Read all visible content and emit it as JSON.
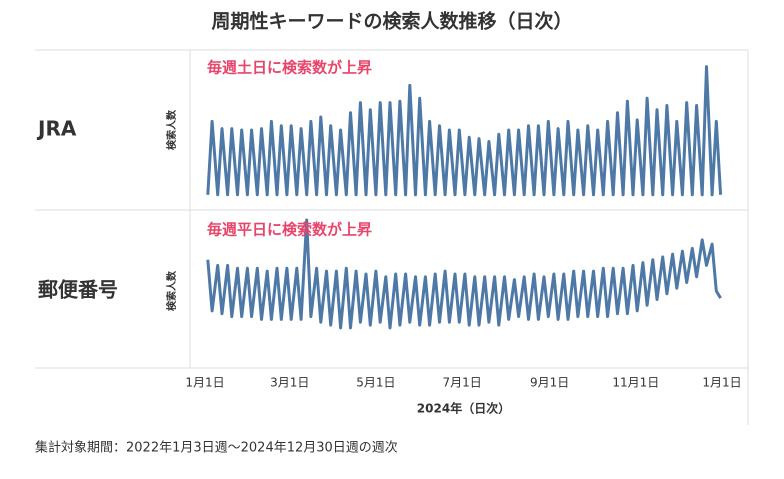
{
  "title": "周期性キーワードの検索人数推移（日次）",
  "chart_data": [
    {
      "type": "line",
      "row_label": "JRA",
      "annotation": "毎週土日に検索数が上昇",
      "y_label": "検索人数",
      "color": "#4e79a7",
      "xlim": [
        0,
        366
      ],
      "ylim": [
        0,
        100
      ],
      "x": [
        2,
        5,
        9,
        12,
        16,
        19,
        23,
        26,
        30,
        33,
        37,
        40,
        44,
        47,
        51,
        54,
        58,
        61,
        65,
        68,
        72,
        75,
        79,
        82,
        86,
        89,
        93,
        96,
        100,
        103,
        107,
        110,
        114,
        117,
        121,
        124,
        128,
        131,
        135,
        138,
        142,
        145,
        149,
        152,
        156,
        159,
        163,
        166,
        170,
        173,
        177,
        180,
        184,
        187,
        191,
        194,
        198,
        201,
        205,
        208,
        212,
        215,
        219,
        222,
        226,
        229,
        233,
        236,
        240,
        243,
        247,
        250,
        254,
        257,
        261,
        264,
        268,
        271,
        275,
        278,
        282,
        285,
        289,
        292,
        296,
        299,
        303,
        306,
        310,
        313,
        317,
        320,
        324,
        327,
        331,
        334,
        338,
        341,
        345,
        348,
        352,
        355,
        359,
        362,
        365
      ],
      "values": [
        5,
        56,
        5,
        51,
        5,
        51,
        5,
        50,
        5,
        50,
        5,
        51,
        5,
        56,
        5,
        53,
        5,
        53,
        5,
        51,
        5,
        56,
        5,
        59,
        5,
        53,
        5,
        50,
        5,
        62,
        5,
        69,
        5,
        64,
        5,
        69,
        5,
        69,
        5,
        70,
        5,
        81,
        5,
        72,
        5,
        56,
        5,
        53,
        5,
        50,
        5,
        50,
        5,
        45,
        5,
        44,
        5,
        42,
        5,
        47,
        5,
        50,
        5,
        50,
        5,
        53,
        5,
        53,
        5,
        56,
        5,
        51,
        5,
        56,
        5,
        50,
        5,
        53,
        5,
        50,
        5,
        56,
        5,
        62,
        5,
        70,
        5,
        57,
        5,
        72,
        5,
        64,
        5,
        67,
        5,
        56,
        5,
        69,
        5,
        67,
        5,
        94,
        5,
        56,
        5
      ]
    },
    {
      "type": "line",
      "row_label": "郵便番号",
      "annotation": "毎週平日に検索数が上昇",
      "y_label": "検索人数",
      "color": "#4e79a7",
      "xlim": [
        0,
        366
      ],
      "ylim": [
        0,
        100
      ],
      "x_label": "2024年（日次）",
      "xticks": [
        {
          "value": 0,
          "label": "1月1日"
        },
        {
          "value": 60,
          "label": "3月1日"
        },
        {
          "value": 121,
          "label": "5月1日"
        },
        {
          "value": 182,
          "label": "7月1日"
        },
        {
          "value": 244,
          "label": "9月1日"
        },
        {
          "value": 305,
          "label": "11月1日"
        },
        {
          "value": 366,
          "label": "1月1日"
        }
      ],
      "x": [
        2,
        5,
        9,
        12,
        16,
        19,
        23,
        26,
        30,
        33,
        37,
        40,
        44,
        47,
        51,
        54,
        58,
        61,
        65,
        68,
        72,
        75,
        79,
        82,
        86,
        89,
        93,
        96,
        100,
        103,
        107,
        110,
        114,
        117,
        121,
        124,
        128,
        131,
        135,
        138,
        142,
        145,
        149,
        152,
        156,
        159,
        163,
        166,
        170,
        173,
        177,
        180,
        184,
        187,
        191,
        194,
        198,
        201,
        205,
        208,
        212,
        215,
        219,
        222,
        226,
        229,
        233,
        236,
        240,
        243,
        247,
        250,
        254,
        257,
        261,
        264,
        268,
        271,
        275,
        278,
        282,
        285,
        289,
        292,
        296,
        299,
        303,
        306,
        310,
        313,
        317,
        320,
        324,
        327,
        331,
        334,
        338,
        341,
        345,
        348,
        352,
        355,
        359,
        362,
        365
      ],
      "values": [
        72,
        36,
        68,
        34,
        68,
        32,
        66,
        32,
        66,
        32,
        66,
        30,
        64,
        30,
        66,
        30,
        66,
        30,
        66,
        30,
        100,
        32,
        66,
        28,
        64,
        26,
        64,
        24,
        66,
        24,
        64,
        28,
        62,
        26,
        64,
        28,
        60,
        24,
        62,
        26,
        62,
        28,
        60,
        26,
        60,
        26,
        62,
        28,
        64,
        28,
        62,
        28,
        62,
        26,
        60,
        26,
        60,
        28,
        60,
        26,
        60,
        30,
        58,
        32,
        60,
        30,
        62,
        30,
        60,
        32,
        62,
        30,
        62,
        30,
        64,
        32,
        64,
        32,
        64,
        32,
        66,
        32,
        66,
        34,
        66,
        34,
        68,
        36,
        70,
        40,
        72,
        44,
        74,
        48,
        76,
        52,
        78,
        56,
        80,
        60,
        86,
        68,
        83,
        50,
        45
      ]
    }
  ],
  "footnote": "集計対象期間：2022年1月3日週～2024年12月30日週の週次"
}
